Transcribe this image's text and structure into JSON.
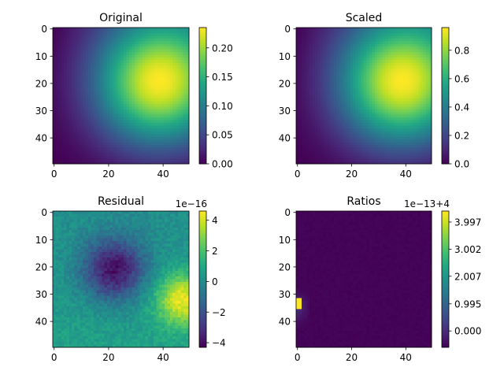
{
  "chart_data": [
    {
      "type": "heatmap",
      "title": "Original",
      "field": "bump",
      "z": [
        0.0,
        0.235
      ],
      "x_ticks": [
        "0",
        "20",
        "40"
      ],
      "y_ticks": [
        "0",
        "10",
        "20",
        "30",
        "40"
      ],
      "colorbar_ticks": [
        {
          "v": 0.0,
          "label": "0.00"
        },
        {
          "v": 0.05,
          "label": "0.05"
        },
        {
          "v": 0.1,
          "label": "0.10"
        },
        {
          "v": 0.15,
          "label": "0.15"
        },
        {
          "v": 0.2,
          "label": "0.20"
        }
      ],
      "colorbar_offset": ""
    },
    {
      "type": "heatmap",
      "title": "Scaled",
      "field": "bump",
      "z": [
        0.0,
        0.96
      ],
      "x_ticks": [
        "0",
        "20",
        "40"
      ],
      "y_ticks": [
        "0",
        "10",
        "20",
        "30",
        "40"
      ],
      "colorbar_ticks": [
        {
          "v": 0.0,
          "label": "0.0"
        },
        {
          "v": 0.2,
          "label": "0.2"
        },
        {
          "v": 0.4,
          "label": "0.4"
        },
        {
          "v": 0.6,
          "label": "0.6"
        },
        {
          "v": 0.8,
          "label": "0.8"
        }
      ],
      "colorbar_offset": ""
    },
    {
      "type": "heatmap",
      "title": "Residual",
      "field": "residual",
      "z": [
        -4.3,
        4.6
      ],
      "x_ticks": [
        "0",
        "20",
        "40"
      ],
      "y_ticks": [
        "0",
        "10",
        "20",
        "30",
        "40"
      ],
      "colorbar_ticks": [
        {
          "v": -4,
          "label": "−4"
        },
        {
          "v": -2,
          "label": "−2"
        },
        {
          "v": 0,
          "label": "0"
        },
        {
          "v": 2,
          "label": "2"
        },
        {
          "v": 4,
          "label": "4"
        }
      ],
      "colorbar_offset": "1e−16"
    },
    {
      "type": "heatmap",
      "title": "Ratios",
      "field": "ratios",
      "z": [
        -0.6,
        4.4
      ],
      "x_ticks": [
        "0",
        "20",
        "40"
      ],
      "y_ticks": [
        "0",
        "10",
        "20",
        "30",
        "40"
      ],
      "colorbar_ticks": [
        {
          "v": 0.0,
          "label": "0.000"
        },
        {
          "v": 0.995,
          "label": "0.995"
        },
        {
          "v": 2.007,
          "label": "2.007"
        },
        {
          "v": 3.002,
          "label": "3.002"
        },
        {
          "v": 3.997,
          "label": "3.997"
        }
      ],
      "colorbar_offset": "1e−13+4"
    }
  ]
}
